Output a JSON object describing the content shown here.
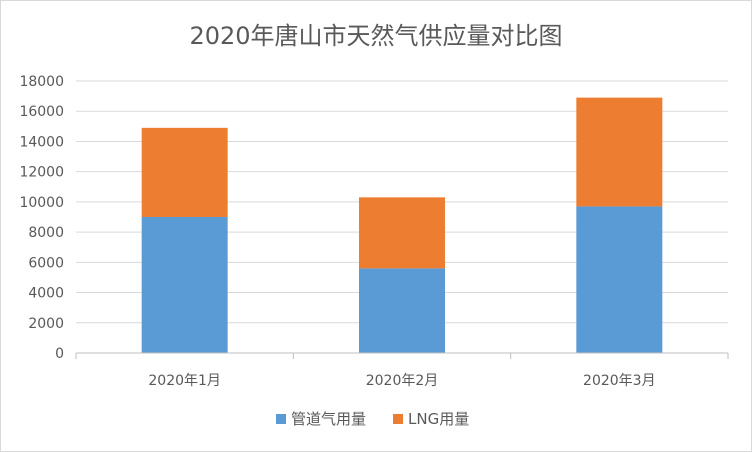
{
  "chart_data": {
    "type": "bar",
    "stacked": true,
    "title": "2020年唐山市天然气供应量对比图",
    "categories": [
      "2020年1月",
      "2020年2月",
      "2020年3月"
    ],
    "series": [
      {
        "name": "管道气用量",
        "color": "#5b9bd5",
        "values": [
          9000,
          5600,
          9700
        ]
      },
      {
        "name": "LNG用量",
        "color": "#ed7d31",
        "values": [
          5900,
          4700,
          7200
        ]
      }
    ],
    "ylim": [
      0,
      18000
    ],
    "yticks": [
      "0",
      "2000",
      "4000",
      "6000",
      "8000",
      "10000",
      "12000",
      "14000",
      "16000",
      "18000"
    ],
    "grid": true,
    "legend_position": "bottom"
  }
}
